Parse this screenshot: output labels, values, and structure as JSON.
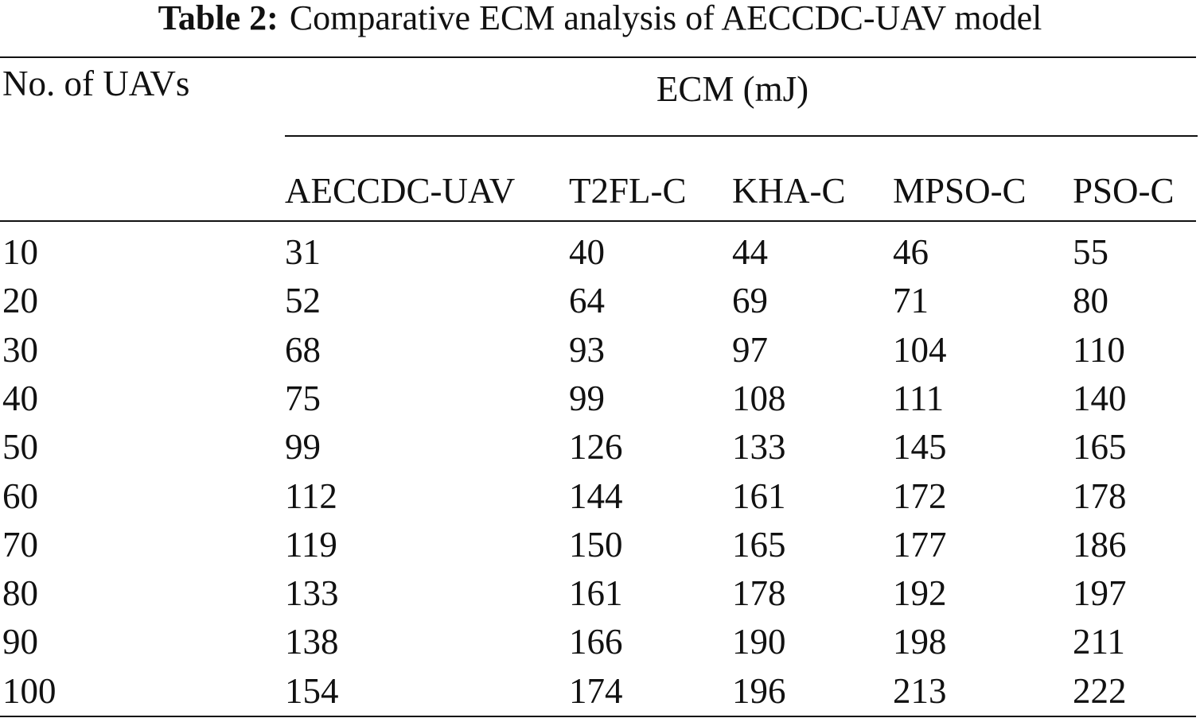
{
  "caption": {
    "label": "Table 2:",
    "text": "Comparative ECM analysis of AECCDC-UAV model"
  },
  "table": {
    "row_header": "No. of UAVs",
    "group_header": "ECM (mJ)",
    "columns": [
      "AECCDC-UAV",
      "T2FL-C",
      "KHA-C",
      "MPSO-C",
      "PSO-C"
    ],
    "rows": [
      [
        10,
        31,
        40,
        44,
        46,
        55
      ],
      [
        20,
        52,
        64,
        69,
        71,
        80
      ],
      [
        30,
        68,
        93,
        97,
        104,
        110
      ],
      [
        40,
        75,
        99,
        108,
        111,
        140
      ],
      [
        50,
        99,
        126,
        133,
        145,
        165
      ],
      [
        60,
        112,
        144,
        161,
        172,
        178
      ],
      [
        70,
        119,
        150,
        165,
        177,
        186
      ],
      [
        80,
        133,
        161,
        178,
        192,
        197
      ],
      [
        90,
        138,
        166,
        190,
        198,
        211
      ],
      [
        100,
        154,
        174,
        196,
        213,
        222
      ]
    ]
  }
}
